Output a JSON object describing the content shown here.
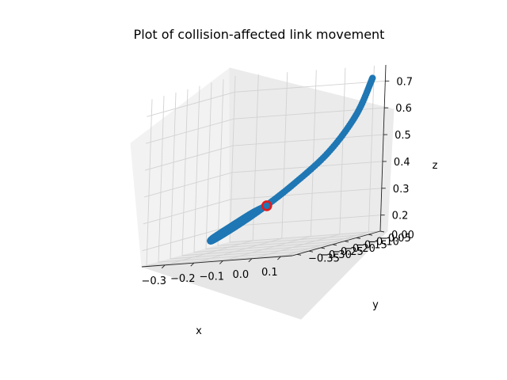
{
  "chart_data": {
    "type": "line3d",
    "title": "Plot of collision-affected link movement",
    "xlabel": "x",
    "ylabel": "y",
    "zlabel": "z",
    "xlim": [
      -0.38,
      0.14
    ],
    "ylim": [
      -0.37,
      0.0
    ],
    "zlim": [
      0.14,
      0.76
    ],
    "xticks": [
      -0.3,
      -0.2,
      -0.1,
      0.0,
      0.1
    ],
    "xtick_labels": [
      "−0.3",
      "−0.2",
      "−0.1",
      "0.0",
      "0.1"
    ],
    "yticks": [
      0.0,
      -0.05,
      -0.1,
      -0.15,
      -0.2,
      -0.25,
      -0.3,
      -0.35
    ],
    "ytick_labels": [
      "0.00",
      "−0.05",
      "−0.10",
      "−0.15",
      "−0.20",
      "−0.25",
      "−0.30",
      "−0.35"
    ],
    "zticks": [
      0.2,
      0.3,
      0.4,
      0.5,
      0.6,
      0.7
    ],
    "ztick_labels": [
      "0.2",
      "0.3",
      "0.4",
      "0.5",
      "0.6",
      "0.7"
    ],
    "grid": true,
    "series": [
      {
        "marker": "circle",
        "color": "#1f77b4",
        "points": [
          {
            "x": 0.12,
            "y": -0.03,
            "z": 0.72
          },
          {
            "x": 0.125,
            "y": -0.1,
            "z": 0.6
          },
          {
            "x": 0.09,
            "y": -0.17,
            "z": 0.48
          },
          {
            "x": 0.02,
            "y": -0.23,
            "z": 0.38
          },
          {
            "x": -0.06,
            "y": -0.27,
            "z": 0.3
          },
          {
            "x": -0.14,
            "y": -0.29,
            "z": 0.24
          },
          {
            "x": -0.22,
            "y": -0.27,
            "z": 0.2
          },
          {
            "x": -0.26,
            "y": -0.22,
            "z": 0.2
          },
          {
            "x": -0.24,
            "y": -0.17,
            "z": 0.23
          },
          {
            "x": -0.19,
            "y": -0.14,
            "z": 0.27
          },
          {
            "x": -0.15,
            "y": -0.13,
            "z": 0.29
          }
        ]
      }
    ],
    "highlight_point": {
      "x": -0.15,
      "y": -0.13,
      "z": 0.29,
      "edgecolor": "#e41a1c"
    }
  }
}
